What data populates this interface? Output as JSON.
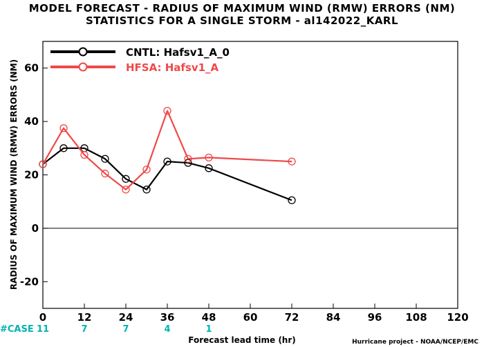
{
  "chart_data": {
    "type": "line",
    "title": "MODEL FORECAST - RADIUS OF MAXIMUM WIND (RMW) ERRORS (NM)",
    "subtitle": "STATISTICS FOR A SINGLE STORM - al142022_KARL",
    "xlabel": "Forecast lead time (hr)",
    "ylabel": "RADIUS OF MAXIMUM WIND (RMW) ERRORS (NM)",
    "xlim": [
      0,
      120
    ],
    "ylim": [
      -30,
      70
    ],
    "xticks": [
      0,
      12,
      24,
      36,
      48,
      60,
      72,
      84,
      96,
      108,
      120
    ],
    "yticks": [
      -20,
      0,
      20,
      40,
      60
    ],
    "grid": false,
    "legend_position": "top-left",
    "series": [
      {
        "name": "CNTL: Hafsv1_A_0",
        "color": "#000000",
        "x": [
          0,
          6,
          12,
          18,
          24,
          30,
          36,
          42,
          48,
          72
        ],
        "y": [
          24,
          30,
          30,
          26,
          18.5,
          14.5,
          25,
          24.5,
          22.5,
          10.5
        ]
      },
      {
        "name": "HFSA: Hafsv1_A",
        "color": "#f04848",
        "x": [
          0,
          6,
          12,
          18,
          24,
          30,
          36,
          42,
          48,
          72
        ],
        "y": [
          24,
          37.5,
          27.5,
          20.5,
          14.5,
          22,
          44,
          26,
          26.5,
          25
        ]
      }
    ],
    "cases": {
      "label": "#CASE",
      "x": [
        0,
        12,
        24,
        36,
        48
      ],
      "values": [
        "11",
        "7",
        "7",
        "4",
        "1"
      ]
    },
    "credit": "Hurricane project - NOAA/NCEP/EMC"
  }
}
